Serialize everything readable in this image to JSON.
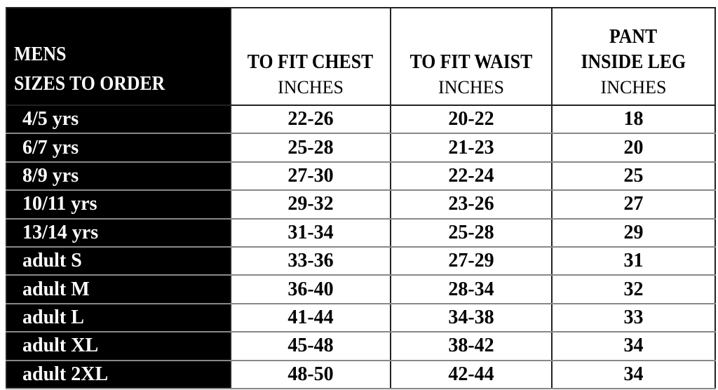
{
  "header": {
    "size_col": [
      "MENS",
      "SIZES TO ORDER"
    ],
    "columns": [
      {
        "title": [
          "TO FIT CHEST"
        ],
        "unit": "INCHES"
      },
      {
        "title": [
          "TO FIT WAIST"
        ],
        "unit": "INCHES"
      },
      {
        "title": [
          "PANT",
          "INSIDE LEG"
        ],
        "unit": "INCHES"
      }
    ]
  },
  "rows": [
    {
      "size": "4/5 yrs",
      "chest": "22-26",
      "waist": "20-22",
      "leg": "18"
    },
    {
      "size": "6/7 yrs",
      "chest": "25-28",
      "waist": "21-23",
      "leg": "20"
    },
    {
      "size": "8/9 yrs",
      "chest": "27-30",
      "waist": "22-24",
      "leg": "25"
    },
    {
      "size": "10/11 yrs",
      "chest": "29-32",
      "waist": "23-26",
      "leg": "27"
    },
    {
      "size": "13/14 yrs",
      "chest": "31-34",
      "waist": "25-28",
      "leg": "29"
    },
    {
      "size": "adult S",
      "chest": "33-36",
      "waist": "27-29",
      "leg": "31"
    },
    {
      "size": "adult M",
      "chest": "36-40",
      "waist": "28-34",
      "leg": "32"
    },
    {
      "size": "adult L",
      "chest": "41-44",
      "waist": "34-38",
      "leg": "33"
    },
    {
      "size": "adult XL",
      "chest": "45-48",
      "waist": "38-42",
      "leg": "34"
    },
    {
      "size": "adult 2XL",
      "chest": "48-50",
      "waist": "42-44",
      "leg": "34"
    }
  ]
}
